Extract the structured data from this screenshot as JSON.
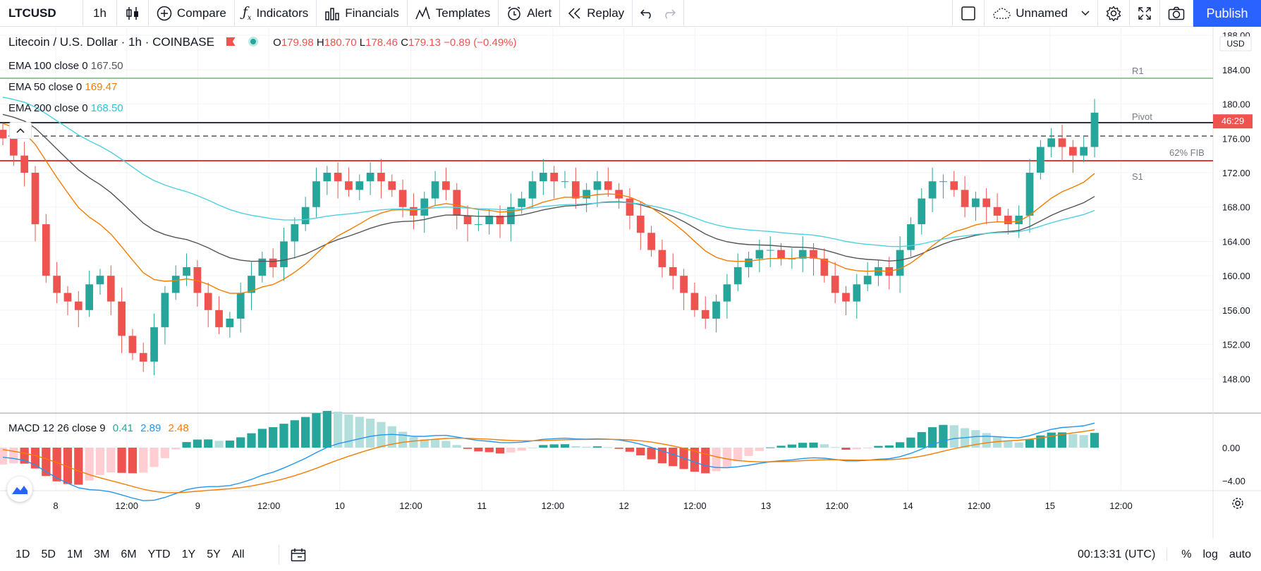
{
  "toolbar": {
    "symbol": "LTCUSD",
    "interval": "1h",
    "compare": "Compare",
    "indicators": "Indicators",
    "financials": "Financials",
    "templates": "Templates",
    "alert": "Alert",
    "replay": "Replay",
    "layout_name": "Unnamed",
    "publish": "Publish"
  },
  "legend": {
    "title": "Litecoin / U.S. Dollar · 1h · COINBASE",
    "ohlc": {
      "o_label": "O",
      "o": "179.98",
      "h_label": "H",
      "h": "180.70",
      "l_label": "L",
      "l": "178.46",
      "c_label": "C",
      "c": "179.13",
      "change": "−0.89 (−0.49%)"
    },
    "ema100_label": "EMA 100 close 0",
    "ema100_value": "167.50",
    "ema50_label": "EMA 50 close 0",
    "ema50_value": "169.47",
    "ema200_label": "EMA 200 close 0",
    "ema200_value": "168.50",
    "macd_label": "MACD 12 26 close 9",
    "macd_hist": "0.41",
    "macd_line": "2.89",
    "macd_signal": "2.48"
  },
  "levels": {
    "r1": "R1",
    "pivot": "Pivot",
    "fib": "62% FIB",
    "s1": "S1"
  },
  "price_axis": {
    "currency": "USD",
    "ticks": [
      "188.00",
      "184.00",
      "180.00",
      "176.00",
      "172.00",
      "168.00",
      "164.00",
      "160.00",
      "156.00",
      "152.00",
      "148.00"
    ],
    "countdown": "46:29",
    "macd_ticks": [
      "0.00",
      "−4.00"
    ]
  },
  "time_axis": [
    "8",
    "12:00",
    "9",
    "12:00",
    "10",
    "12:00",
    "11",
    "12:00",
    "12",
    "12:00",
    "13",
    "12:00",
    "14",
    "12:00",
    "15",
    "12:00"
  ],
  "bottom": {
    "ranges": [
      "1D",
      "5D",
      "1M",
      "3M",
      "6M",
      "YTD",
      "1Y",
      "5Y",
      "All"
    ],
    "clock": "00:13:31 (UTC)",
    "pct": "%",
    "log": "log",
    "auto": "auto"
  },
  "colors": {
    "up": "#26a69a",
    "down": "#ef5350",
    "ema100": "#555555",
    "ema50": "#f57c00",
    "ema200": "#4dd0e1",
    "accent": "#2962ff"
  },
  "chart_data": {
    "type": "candlestick",
    "ylim": [
      144,
      189
    ],
    "closes": [
      176,
      174,
      172,
      166,
      160,
      158,
      157,
      156,
      159,
      160,
      157,
      153,
      151,
      150,
      154,
      158,
      160,
      161,
      158,
      156,
      154,
      155,
      158,
      160,
      162,
      161,
      164,
      166,
      168,
      171,
      172,
      171,
      170,
      171,
      172,
      171,
      170,
      168,
      167,
      169,
      171,
      170,
      167,
      166,
      166,
      167,
      166,
      168,
      169,
      171,
      172,
      171,
      171,
      169,
      170,
      171,
      170,
      169,
      167,
      165,
      163,
      161,
      160,
      158,
      156,
      155,
      157,
      159,
      161,
      162,
      163,
      163,
      162,
      162,
      163,
      162,
      160,
      158,
      157,
      159,
      160,
      161,
      160,
      163,
      166,
      169,
      171,
      171,
      170,
      168,
      169,
      168,
      167,
      166,
      167,
      172,
      175,
      176,
      175,
      174,
      175,
      179
    ]
  }
}
